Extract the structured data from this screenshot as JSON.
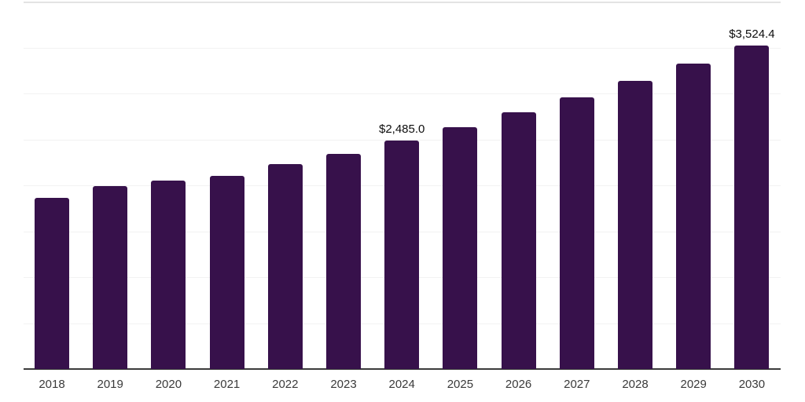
{
  "chart_data": {
    "type": "bar",
    "title": "",
    "xlabel": "",
    "ylabel": "",
    "categories": [
      "2018",
      "2019",
      "2020",
      "2021",
      "2022",
      "2023",
      "2024",
      "2025",
      "2026",
      "2027",
      "2028",
      "2029",
      "2030"
    ],
    "values": [
      1862.0,
      1990.0,
      2050.0,
      2101.0,
      2229.0,
      2340.0,
      2485.0,
      2634.0,
      2791.9,
      2959.4,
      3136.9,
      3325.1,
      3524.4
    ],
    "value_labels": [
      "",
      "",
      "",
      "",
      "",
      "",
      "$2,485.0",
      "",
      "",
      "",
      "",
      "",
      "$3,524.4"
    ],
    "ylim": [
      0,
      4000
    ],
    "grid_step": 500,
    "grid": "horizontal-only",
    "y_tick_labels_shown": false,
    "legend_position": "none",
    "colors": {
      "bar": "#37114B",
      "axis_line": "#3b3b3b",
      "gridline": "#f2f2f2",
      "top_gridline": "#e3e3e3",
      "x_tick_label": "#3a3a3a",
      "data_label": "#0d0d0d",
      "background": "#ffffff"
    }
  }
}
